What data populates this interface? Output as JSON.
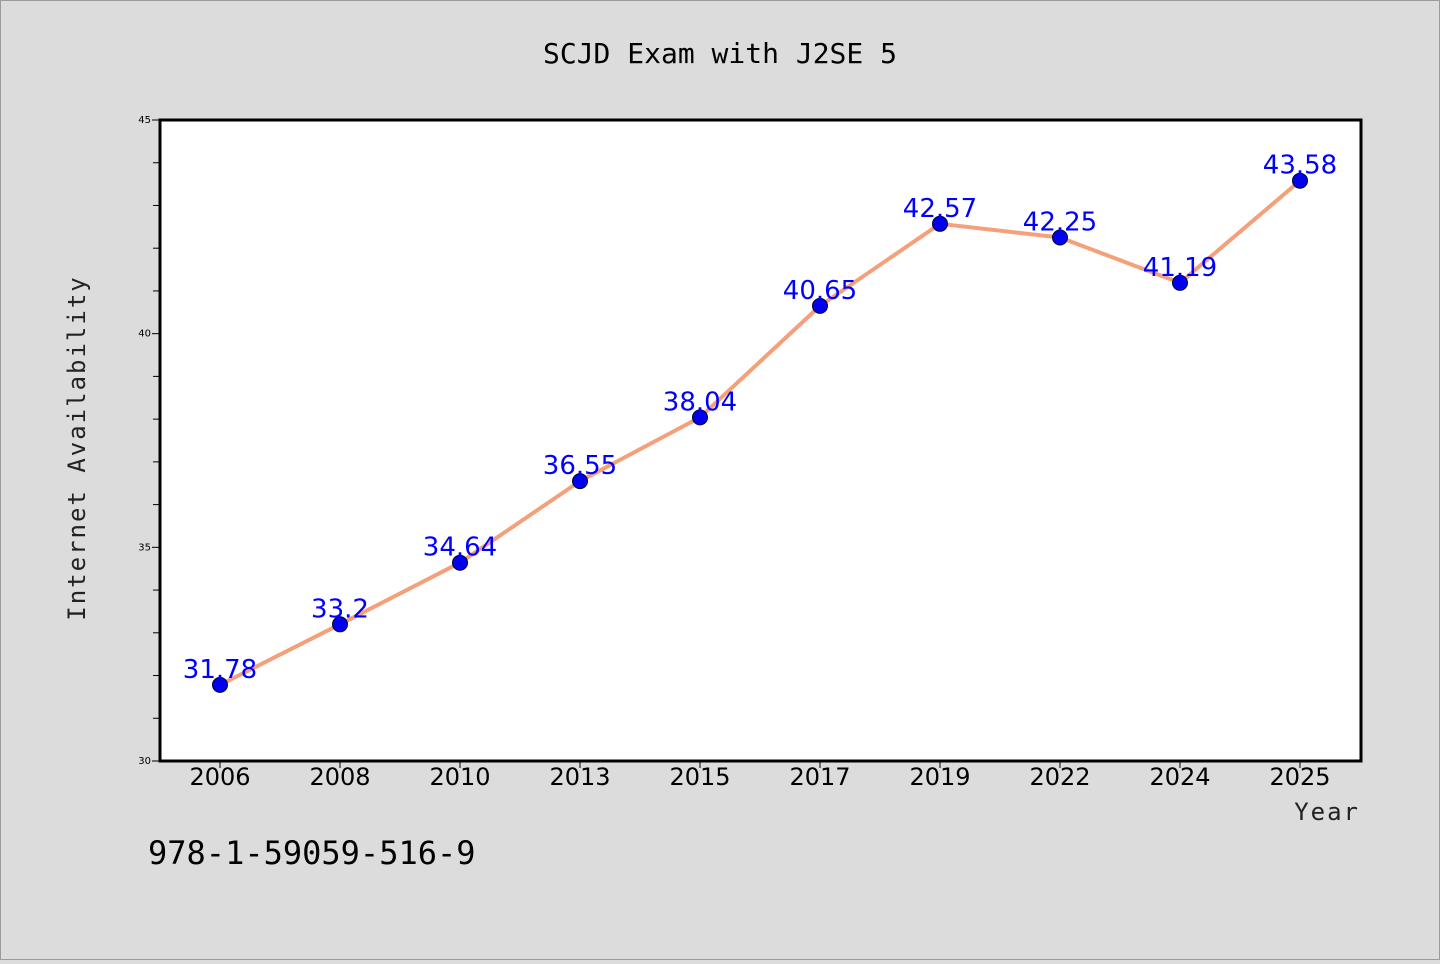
{
  "chart_data": {
    "type": "line",
    "title": "SCJD Exam with J2SE 5",
    "xlabel": "Year",
    "ylabel": "Internet Availability",
    "categories": [
      "2006",
      "2008",
      "2010",
      "2013",
      "2015",
      "2017",
      "2019",
      "2022",
      "2024",
      "2025"
    ],
    "series": [
      {
        "values": [
          31.78,
          33.2,
          34.64,
          36.55,
          38.04,
          40.65,
          42.57,
          42.25,
          41.19,
          43.58
        ]
      }
    ],
    "data_labels": [
      "31.78",
      "33.2",
      "34.64",
      "36.55",
      "38.04",
      "40.65",
      "42.57",
      "42.25",
      "41.19",
      "43.58"
    ],
    "ylim": [
      30,
      45
    ],
    "y_major_ticks": [
      "30",
      "35",
      "40",
      "45"
    ],
    "y_minor_step": 1,
    "grid": false,
    "line_color": "#f4a07a",
    "marker_color": "#0000ee",
    "label_color": "#0000ff",
    "background_color": "#dcdcdc",
    "plot_background": "#ffffff"
  },
  "footer": {
    "isbn": "978-1-59059-516-9"
  }
}
